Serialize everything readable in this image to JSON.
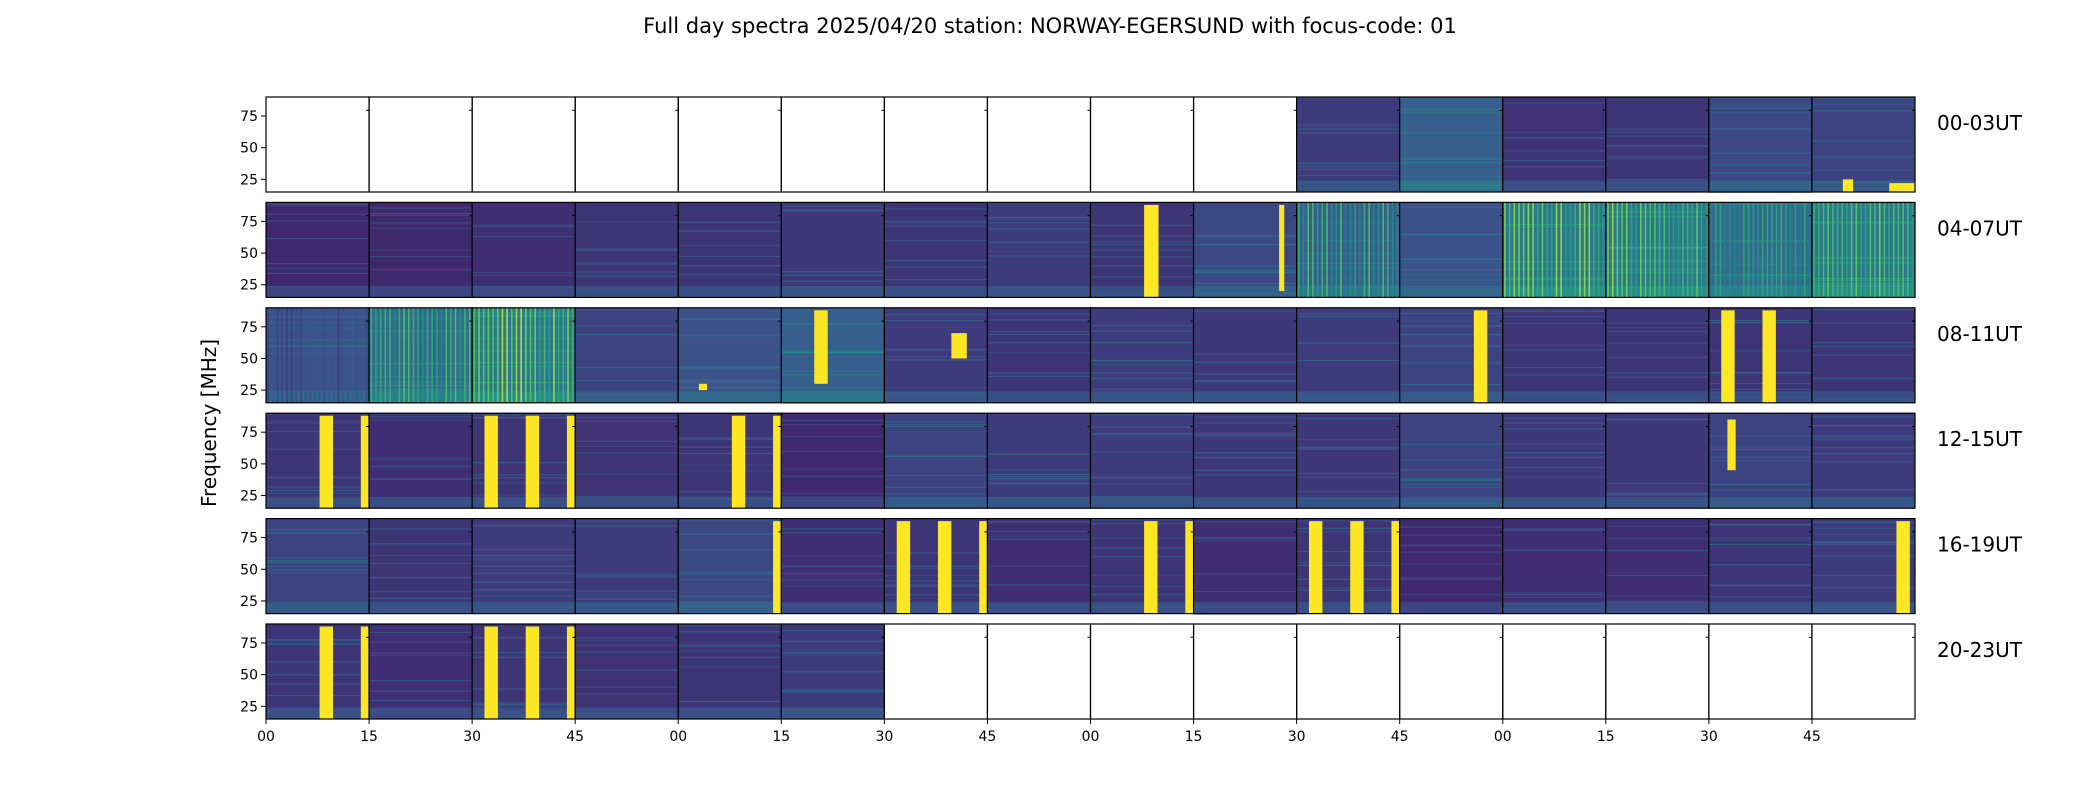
{
  "chart_data": {
    "type": "heatmap",
    "title": "Full day spectra 2025/04/20 station: NORWAY-EGERSUND with focus-code: 01",
    "ylabel": "Frequency [MHz]",
    "xlabel": "",
    "y_ticks": [
      25,
      50,
      75
    ],
    "ylim": [
      15,
      90
    ],
    "x_tick_labels": [
      "00",
      "15",
      "30",
      "45",
      "00",
      "15",
      "30",
      "45",
      "00",
      "15",
      "30",
      "45",
      "00",
      "15",
      "30",
      "45"
    ],
    "colormap": [
      "#440154",
      "#3b528b",
      "#21918c",
      "#5ec962",
      "#fde725"
    ],
    "panels_per_row": 16,
    "rows": [
      {
        "label": "00-03UT",
        "panels": [
          {
            "data": false
          },
          {
            "data": false
          },
          {
            "data": false
          },
          {
            "data": false
          },
          {
            "data": false
          },
          {
            "data": false
          },
          {
            "data": false
          },
          {
            "data": false
          },
          {
            "data": false
          },
          {
            "data": false
          },
          {
            "data": true,
            "level": 0.18,
            "bursts": []
          },
          {
            "data": true,
            "level": 0.3,
            "bursts": []
          },
          {
            "data": true,
            "level": 0.15,
            "bursts": []
          },
          {
            "data": true,
            "level": 0.16,
            "bursts": []
          },
          {
            "data": true,
            "level": 0.22,
            "bursts": []
          },
          {
            "data": true,
            "level": 0.2,
            "bursts": [
              {
                "x0": 0.3,
                "x1": 0.4,
                "f0": 15,
                "f1": 25
              },
              {
                "x0": 0.75,
                "x1": 1.0,
                "f0": 15,
                "f1": 22
              }
            ]
          }
        ]
      },
      {
        "label": "04-07UT",
        "panels": [
          {
            "data": true,
            "level": 0.12,
            "bursts": []
          },
          {
            "data": true,
            "level": 0.12,
            "bursts": []
          },
          {
            "data": true,
            "level": 0.14,
            "bursts": []
          },
          {
            "data": true,
            "level": 0.16,
            "bursts": []
          },
          {
            "data": true,
            "level": 0.16,
            "bursts": []
          },
          {
            "data": true,
            "level": 0.17,
            "bursts": []
          },
          {
            "data": true,
            "level": 0.16,
            "bursts": []
          },
          {
            "data": true,
            "level": 0.18,
            "bursts": []
          },
          {
            "data": true,
            "level": 0.16,
            "bursts": [
              {
                "x0": 0.52,
                "x1": 0.66,
                "f0": 15,
                "f1": 88
              }
            ]
          },
          {
            "data": true,
            "level": 0.22,
            "bursts": [
              {
                "x0": 0.83,
                "x1": 0.88,
                "f0": 20,
                "f1": 88
              }
            ]
          },
          {
            "data": true,
            "level": 0.3,
            "bursts": [],
            "striped": 0.7
          },
          {
            "data": true,
            "level": 0.25,
            "bursts": []
          },
          {
            "data": true,
            "level": 0.4,
            "bursts": [],
            "striped": 0.85
          },
          {
            "data": true,
            "level": 0.4,
            "bursts": [],
            "striped": 0.85
          },
          {
            "data": true,
            "level": 0.35,
            "bursts": [],
            "striped": 0.6
          },
          {
            "data": true,
            "level": 0.4,
            "bursts": [],
            "striped": 0.8
          }
        ]
      },
      {
        "label": "08-11UT",
        "panels": [
          {
            "data": true,
            "level": 0.25,
            "bursts": [],
            "striped": 0.3
          },
          {
            "data": true,
            "level": 0.35,
            "bursts": [],
            "striped": 0.7
          },
          {
            "data": true,
            "level": 0.4,
            "bursts": [],
            "striped": 0.9
          },
          {
            "data": true,
            "level": 0.2,
            "bursts": []
          },
          {
            "data": true,
            "level": 0.25,
            "bursts": [
              {
                "x0": 0.2,
                "x1": 0.28,
                "f0": 25,
                "f1": 30
              }
            ]
          },
          {
            "data": true,
            "level": 0.3,
            "bursts": [
              {
                "x0": 0.32,
                "x1": 0.45,
                "f0": 30,
                "f1": 88
              }
            ]
          },
          {
            "data": true,
            "level": 0.18,
            "bursts": [
              {
                "x0": 0.65,
                "x1": 0.8,
                "f0": 50,
                "f1": 70
              }
            ]
          },
          {
            "data": true,
            "level": 0.16,
            "bursts": []
          },
          {
            "data": true,
            "level": 0.18,
            "bursts": []
          },
          {
            "data": true,
            "level": 0.17,
            "bursts": []
          },
          {
            "data": true,
            "level": 0.18,
            "bursts": []
          },
          {
            "data": true,
            "level": 0.2,
            "bursts": [
              {
                "x0": 0.72,
                "x1": 0.85,
                "f0": 15,
                "f1": 88
              }
            ]
          },
          {
            "data": true,
            "level": 0.16,
            "bursts": []
          },
          {
            "data": true,
            "level": 0.16,
            "bursts": []
          },
          {
            "data": true,
            "level": 0.16,
            "bursts": [
              {
                "x0": 0.12,
                "x1": 0.25,
                "f0": 15,
                "f1": 88
              },
              {
                "x0": 0.52,
                "x1": 0.65,
                "f0": 15,
                "f1": 88
              }
            ]
          },
          {
            "data": true,
            "level": 0.16,
            "bursts": []
          }
        ]
      },
      {
        "label": "12-15UT",
        "panels": [
          {
            "data": true,
            "level": 0.16,
            "bursts": [
              {
                "x0": 0.52,
                "x1": 0.65,
                "f0": 15,
                "f1": 88
              },
              {
                "x0": 0.92,
                "x1": 1.0,
                "f0": 15,
                "f1": 88
              }
            ]
          },
          {
            "data": true,
            "level": 0.14,
            "bursts": []
          },
          {
            "data": true,
            "level": 0.16,
            "bursts": [
              {
                "x0": 0.12,
                "x1": 0.25,
                "f0": 15,
                "f1": 88
              },
              {
                "x0": 0.52,
                "x1": 0.65,
                "f0": 15,
                "f1": 88
              },
              {
                "x0": 0.92,
                "x1": 1.0,
                "f0": 15,
                "f1": 88
              }
            ]
          },
          {
            "data": true,
            "level": 0.15,
            "bursts": []
          },
          {
            "data": true,
            "level": 0.16,
            "bursts": [
              {
                "x0": 0.52,
                "x1": 0.65,
                "f0": 15,
                "f1": 88
              },
              {
                "x0": 0.92,
                "x1": 1.0,
                "f0": 15,
                "f1": 88
              }
            ]
          },
          {
            "data": true,
            "level": 0.12,
            "bursts": []
          },
          {
            "data": true,
            "level": 0.2,
            "bursts": []
          },
          {
            "data": true,
            "level": 0.18,
            "bursts": []
          },
          {
            "data": true,
            "level": 0.18,
            "bursts": []
          },
          {
            "data": true,
            "level": 0.17,
            "bursts": []
          },
          {
            "data": true,
            "level": 0.17,
            "bursts": []
          },
          {
            "data": true,
            "level": 0.2,
            "bursts": []
          },
          {
            "data": true,
            "level": 0.17,
            "bursts": []
          },
          {
            "data": true,
            "level": 0.17,
            "bursts": []
          },
          {
            "data": true,
            "level": 0.2,
            "bursts": [
              {
                "x0": 0.18,
                "x1": 0.26,
                "f0": 45,
                "f1": 85
              }
            ]
          },
          {
            "data": true,
            "level": 0.18,
            "bursts": []
          }
        ]
      },
      {
        "label": "16-19UT",
        "panels": [
          {
            "data": true,
            "level": 0.2,
            "bursts": []
          },
          {
            "data": true,
            "level": 0.16,
            "bursts": []
          },
          {
            "data": true,
            "level": 0.18,
            "bursts": []
          },
          {
            "data": true,
            "level": 0.18,
            "bursts": []
          },
          {
            "data": true,
            "level": 0.22,
            "bursts": [
              {
                "x0": 0.92,
                "x1": 1.0,
                "f0": 15,
                "f1": 88
              }
            ]
          },
          {
            "data": true,
            "level": 0.14,
            "bursts": []
          },
          {
            "data": true,
            "level": 0.16,
            "bursts": [
              {
                "x0": 0.12,
                "x1": 0.25,
                "f0": 15,
                "f1": 88
              },
              {
                "x0": 0.52,
                "x1": 0.65,
                "f0": 15,
                "f1": 88
              },
              {
                "x0": 0.92,
                "x1": 1.0,
                "f0": 15,
                "f1": 88
              }
            ]
          },
          {
            "data": true,
            "level": 0.14,
            "bursts": []
          },
          {
            "data": true,
            "level": 0.16,
            "bursts": [
              {
                "x0": 0.52,
                "x1": 0.65,
                "f0": 15,
                "f1": 88
              },
              {
                "x0": 0.92,
                "x1": 1.0,
                "f0": 15,
                "f1": 88
              }
            ]
          },
          {
            "data": true,
            "level": 0.14,
            "bursts": []
          },
          {
            "data": true,
            "level": 0.16,
            "bursts": [
              {
                "x0": 0.12,
                "x1": 0.25,
                "f0": 15,
                "f1": 88
              },
              {
                "x0": 0.52,
                "x1": 0.65,
                "f0": 15,
                "f1": 88
              },
              {
                "x0": 0.92,
                "x1": 1.0,
                "f0": 15,
                "f1": 88
              }
            ]
          },
          {
            "data": true,
            "level": 0.12,
            "bursts": []
          },
          {
            "data": true,
            "level": 0.14,
            "bursts": []
          },
          {
            "data": true,
            "level": 0.14,
            "bursts": []
          },
          {
            "data": true,
            "level": 0.16,
            "bursts": []
          },
          {
            "data": true,
            "level": 0.18,
            "bursts": [
              {
                "x0": 0.82,
                "x1": 0.95,
                "f0": 15,
                "f1": 88
              }
            ]
          }
        ]
      },
      {
        "label": "20-23UT",
        "panels": [
          {
            "data": true,
            "level": 0.16,
            "bursts": [
              {
                "x0": 0.52,
                "x1": 0.65,
                "f0": 15,
                "f1": 88
              },
              {
                "x0": 0.92,
                "x1": 1.0,
                "f0": 15,
                "f1": 88
              }
            ]
          },
          {
            "data": true,
            "level": 0.14,
            "bursts": []
          },
          {
            "data": true,
            "level": 0.16,
            "bursts": [
              {
                "x0": 0.12,
                "x1": 0.25,
                "f0": 15,
                "f1": 88
              },
              {
                "x0": 0.52,
                "x1": 0.65,
                "f0": 15,
                "f1": 88
              },
              {
                "x0": 0.92,
                "x1": 1.0,
                "f0": 15,
                "f1": 88
              }
            ]
          },
          {
            "data": true,
            "level": 0.15,
            "bursts": []
          },
          {
            "data": true,
            "level": 0.16,
            "bursts": []
          },
          {
            "data": true,
            "level": 0.18,
            "bursts": []
          },
          {
            "data": false
          },
          {
            "data": false
          },
          {
            "data": false
          },
          {
            "data": false
          },
          {
            "data": false
          },
          {
            "data": false
          },
          {
            "data": false
          },
          {
            "data": false
          },
          {
            "data": false
          },
          {
            "data": false
          }
        ]
      }
    ]
  }
}
